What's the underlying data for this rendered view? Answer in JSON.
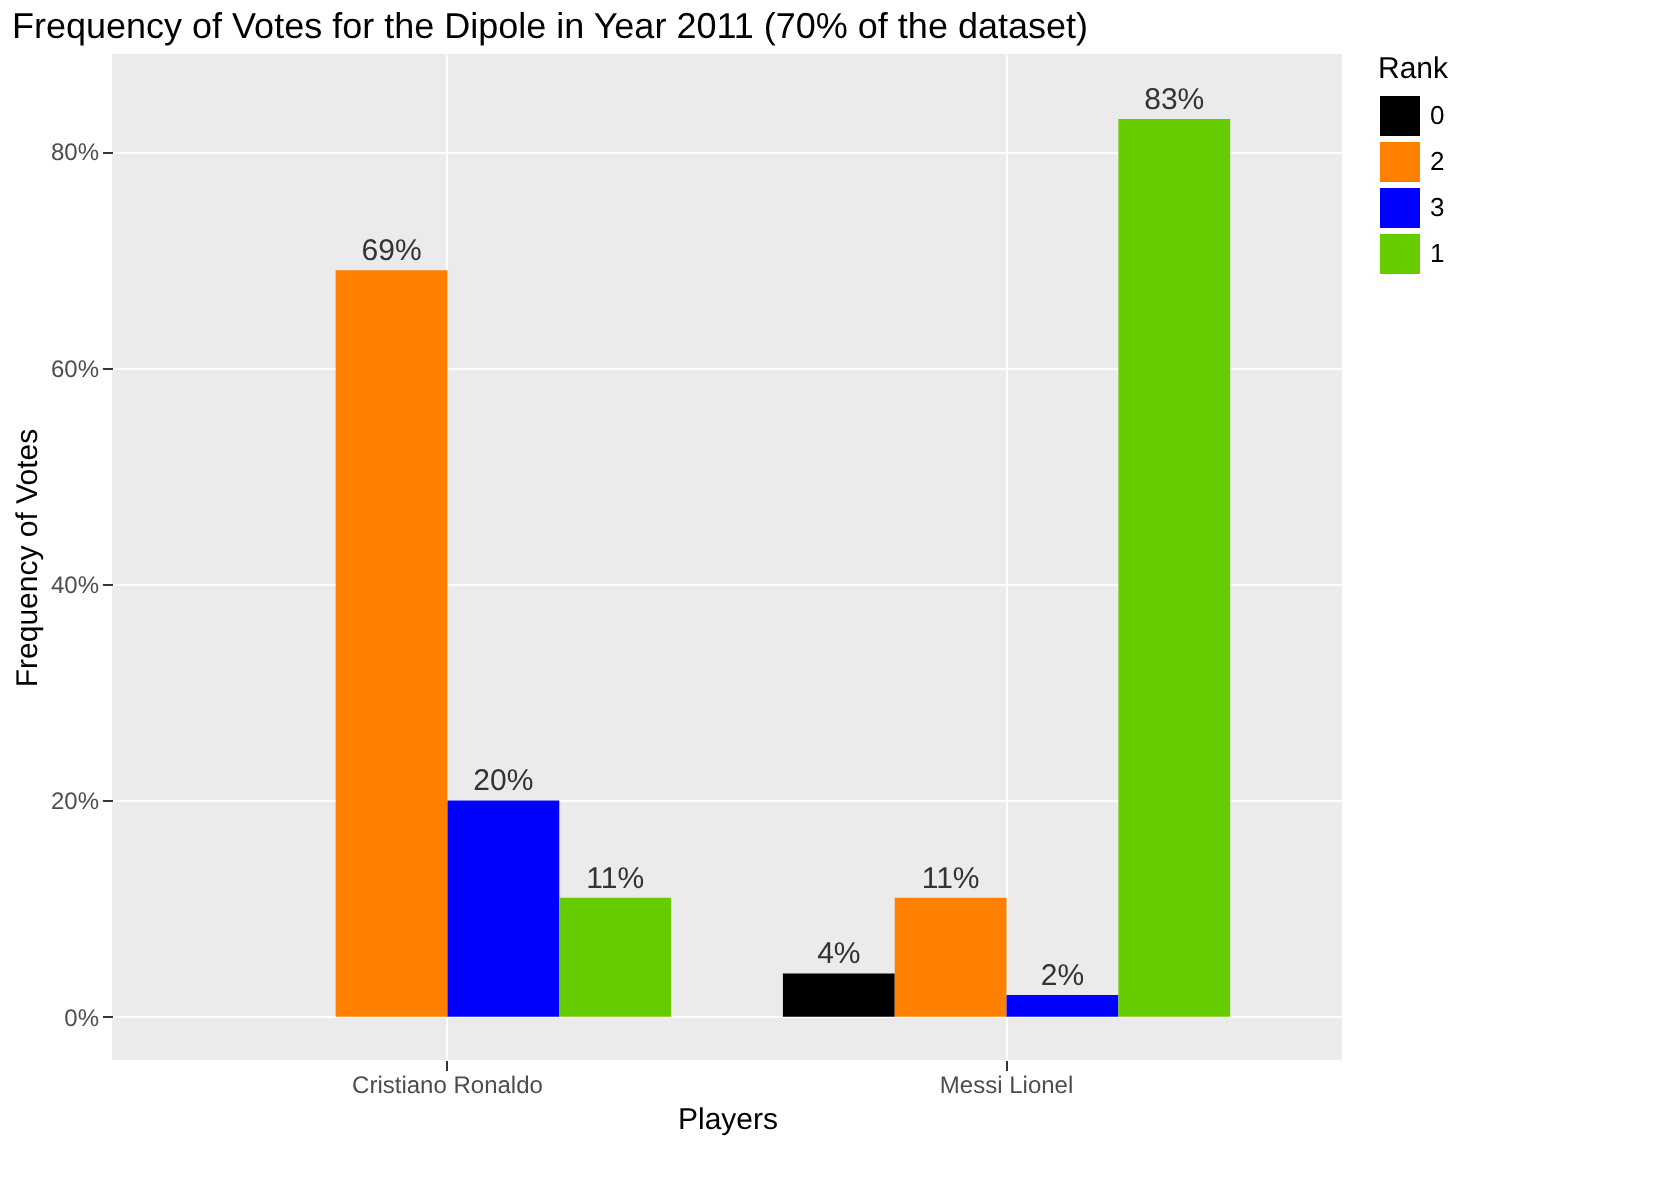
{
  "chart_data": {
    "type": "bar",
    "title": "Frequency of Votes for the Dipole in Year 2011 (70% of the dataset)",
    "xlabel": "Players",
    "ylabel": "Frequency of Votes",
    "legend_title": "Rank",
    "categories": [
      "Cristiano Ronaldo",
      "Messi Lionel"
    ],
    "series": [
      {
        "name": "0",
        "color": "#000000",
        "values": [
          null,
          4
        ],
        "value_labels": [
          null,
          "4%"
        ]
      },
      {
        "name": "2",
        "color": "#ff8000",
        "values": [
          69,
          11
        ],
        "value_labels": [
          "69%",
          "11%"
        ]
      },
      {
        "name": "3",
        "color": "#0000ff",
        "values": [
          20,
          2
        ],
        "value_labels": [
          "20%",
          "2%"
        ]
      },
      {
        "name": "1",
        "color": "#66cc00",
        "values": [
          11,
          83
        ],
        "value_labels": [
          "11%",
          "83%"
        ]
      }
    ],
    "ylim": [
      -4,
      89
    ],
    "yticks": [
      {
        "value": 0,
        "label": "0%"
      },
      {
        "value": 20,
        "label": "20%"
      },
      {
        "value": 40,
        "label": "40%"
      },
      {
        "value": 60,
        "label": "60%"
      },
      {
        "value": 80,
        "label": "80%"
      }
    ],
    "grid": true,
    "legend": "right"
  }
}
